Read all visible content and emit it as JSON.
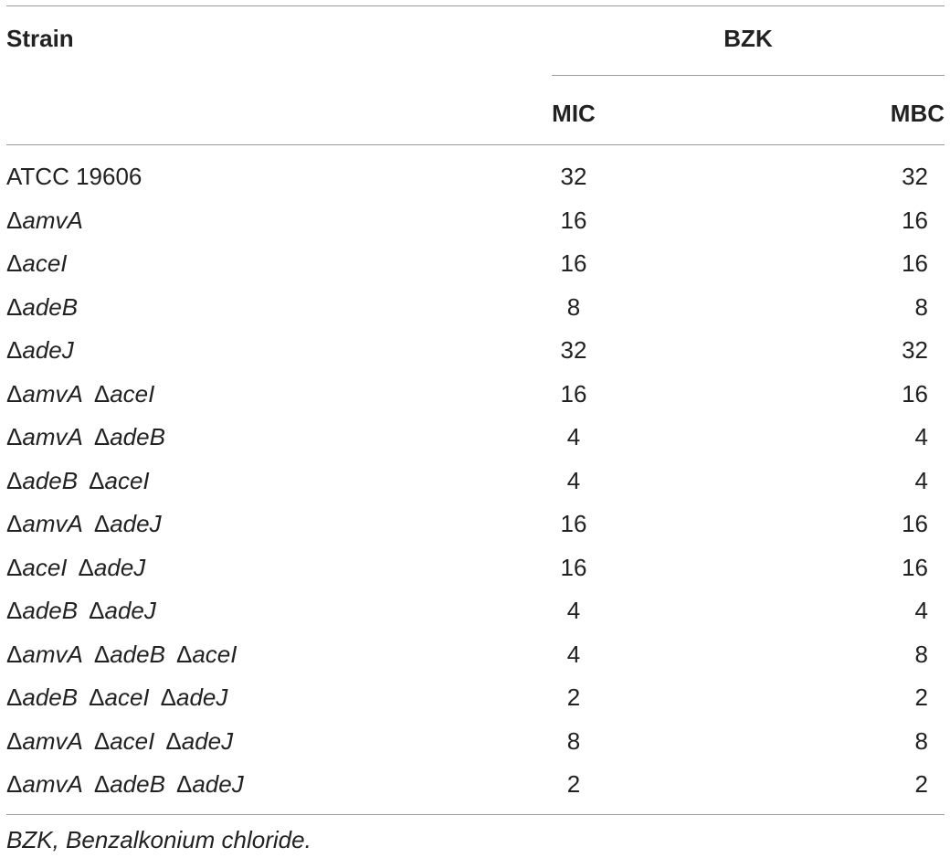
{
  "table": {
    "header": {
      "strain": "Strain",
      "group": "BZK",
      "mic": "MIC",
      "mbc": "MBC"
    },
    "rows": [
      {
        "strain": [
          {
            "t": "ATCC 19606",
            "i": false
          }
        ],
        "mic": "32",
        "mbc": "32"
      },
      {
        "strain": [
          {
            "t": "Δ",
            "i": false
          },
          {
            "t": "amvA",
            "i": true
          }
        ],
        "mic": "16",
        "mbc": "16"
      },
      {
        "strain": [
          {
            "t": "Δ",
            "i": false
          },
          {
            "t": "aceI",
            "i": true
          }
        ],
        "mic": "16",
        "mbc": "16"
      },
      {
        "strain": [
          {
            "t": "Δ",
            "i": false
          },
          {
            "t": "adeB",
            "i": true
          }
        ],
        "mic": "8",
        "mbc": "8"
      },
      {
        "strain": [
          {
            "t": "Δ",
            "i": false
          },
          {
            "t": "adeJ",
            "i": true
          }
        ],
        "mic": "32",
        "mbc": "32"
      },
      {
        "strain": [
          {
            "t": "Δ",
            "i": false
          },
          {
            "t": "amvA",
            "i": true
          },
          {
            "t": " ",
            "i": false
          },
          {
            "t": "Δ",
            "i": false
          },
          {
            "t": "aceI",
            "i": true
          }
        ],
        "mic": "16",
        "mbc": "16"
      },
      {
        "strain": [
          {
            "t": "Δ",
            "i": false
          },
          {
            "t": "amvA",
            "i": true
          },
          {
            "t": " ",
            "i": false
          },
          {
            "t": "Δ",
            "i": false
          },
          {
            "t": "adeB",
            "i": true
          }
        ],
        "mic": "4",
        "mbc": "4"
      },
      {
        "strain": [
          {
            "t": "Δ",
            "i": false
          },
          {
            "t": "adeB",
            "i": true
          },
          {
            "t": " ",
            "i": false
          },
          {
            "t": "Δ",
            "i": false
          },
          {
            "t": "aceI",
            "i": true
          }
        ],
        "mic": "4",
        "mbc": "4"
      },
      {
        "strain": [
          {
            "t": "Δ",
            "i": false
          },
          {
            "t": "amvA",
            "i": true
          },
          {
            "t": " ",
            "i": false
          },
          {
            "t": "Δ",
            "i": false
          },
          {
            "t": "adeJ",
            "i": true
          }
        ],
        "mic": "16",
        "mbc": "16"
      },
      {
        "strain": [
          {
            "t": "Δ",
            "i": false
          },
          {
            "t": "aceI",
            "i": true
          },
          {
            "t": " ",
            "i": false
          },
          {
            "t": "Δ",
            "i": false
          },
          {
            "t": "adeJ",
            "i": true
          }
        ],
        "mic": "16",
        "mbc": "16"
      },
      {
        "strain": [
          {
            "t": "Δ",
            "i": false
          },
          {
            "t": "adeB",
            "i": true
          },
          {
            "t": " ",
            "i": false
          },
          {
            "t": "Δ",
            "i": false
          },
          {
            "t": "adeJ",
            "i": true
          }
        ],
        "mic": "4",
        "mbc": "4"
      },
      {
        "strain": [
          {
            "t": "Δ",
            "i": false
          },
          {
            "t": "amvA",
            "i": true
          },
          {
            "t": " ",
            "i": false
          },
          {
            "t": "Δ",
            "i": false
          },
          {
            "t": "adeB",
            "i": true
          },
          {
            "t": " ",
            "i": false
          },
          {
            "t": "Δ",
            "i": false
          },
          {
            "t": "aceI",
            "i": true
          }
        ],
        "mic": "4",
        "mbc": "8"
      },
      {
        "strain": [
          {
            "t": "Δ",
            "i": false
          },
          {
            "t": "adeB",
            "i": true
          },
          {
            "t": " ",
            "i": false
          },
          {
            "t": "Δ",
            "i": false
          },
          {
            "t": "aceI",
            "i": true
          },
          {
            "t": " ",
            "i": false
          },
          {
            "t": "Δ",
            "i": false
          },
          {
            "t": "adeJ",
            "i": true
          }
        ],
        "mic": "2",
        "mbc": "2"
      },
      {
        "strain": [
          {
            "t": "Δ",
            "i": false
          },
          {
            "t": "amvA",
            "i": true
          },
          {
            "t": " ",
            "i": false
          },
          {
            "t": "Δ",
            "i": false
          },
          {
            "t": "aceI",
            "i": true
          },
          {
            "t": " ",
            "i": false
          },
          {
            "t": "Δ",
            "i": false
          },
          {
            "t": "adeJ",
            "i": true
          }
        ],
        "mic": "8",
        "mbc": "8"
      },
      {
        "strain": [
          {
            "t": "Δ",
            "i": false
          },
          {
            "t": "amvA",
            "i": true
          },
          {
            "t": " ",
            "i": false
          },
          {
            "t": "Δ",
            "i": false
          },
          {
            "t": "adeB",
            "i": true
          },
          {
            "t": " ",
            "i": false
          },
          {
            "t": "Δ",
            "i": false
          },
          {
            "t": "adeJ",
            "i": true
          }
        ],
        "mic": "2",
        "mbc": "2"
      }
    ],
    "footnote": "BZK, Benzalkonium chloride."
  }
}
